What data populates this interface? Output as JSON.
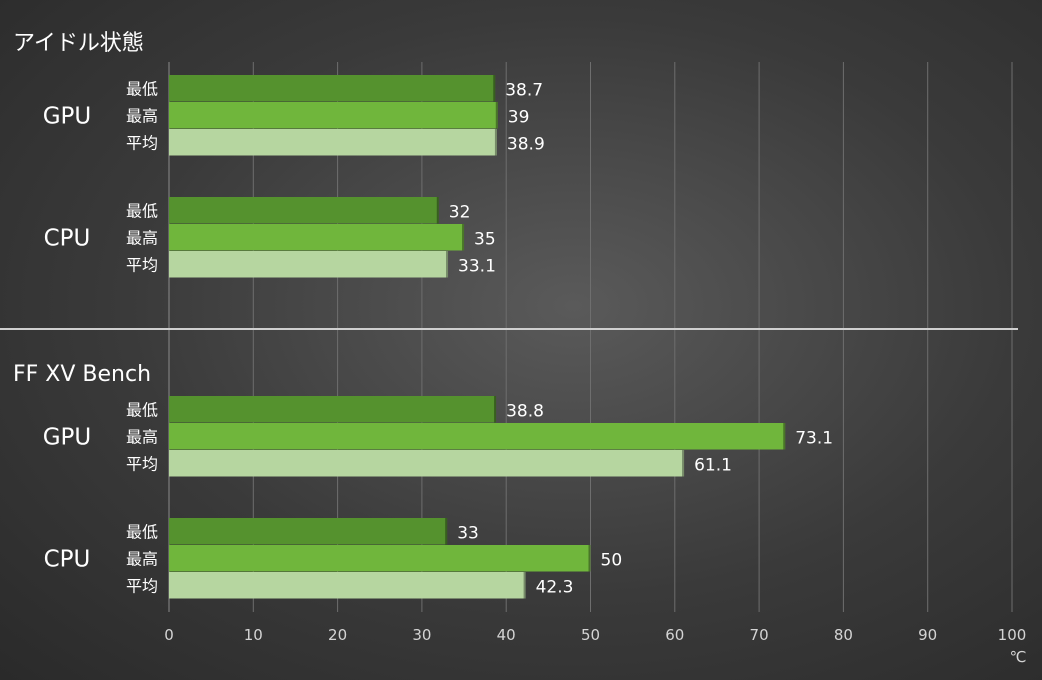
{
  "chart_data": {
    "type": "bar",
    "orientation": "horizontal",
    "unit": "℃",
    "xlim": [
      0,
      100
    ],
    "x_ticks": [
      0,
      10,
      20,
      30,
      40,
      50,
      60,
      70,
      80,
      90,
      100
    ],
    "grid": true,
    "series_names": [
      "最低",
      "最高",
      "平均"
    ],
    "series_colors": [
      "#55922e",
      "#70b63c",
      "#b6d6a0"
    ],
    "sections": [
      {
        "title": "アイドル状態",
        "groups": [
          {
            "label": "GPU",
            "values": [
              38.7,
              39,
              38.9
            ],
            "value_labels": [
              "38.7",
              "39",
              "38.9"
            ]
          },
          {
            "label": "CPU",
            "values": [
              32,
              35,
              33.1
            ],
            "value_labels": [
              "32",
              "35",
              "33.1"
            ]
          }
        ]
      },
      {
        "title": "FF XV Bench",
        "groups": [
          {
            "label": "GPU",
            "values": [
              38.8,
              73.1,
              61.1
            ],
            "value_labels": [
              "38.8",
              "73.1",
              "61.1"
            ]
          },
          {
            "label": "CPU",
            "values": [
              33,
              50,
              42.3
            ],
            "value_labels": [
              "33",
              "50",
              "42.3"
            ]
          }
        ]
      }
    ]
  }
}
